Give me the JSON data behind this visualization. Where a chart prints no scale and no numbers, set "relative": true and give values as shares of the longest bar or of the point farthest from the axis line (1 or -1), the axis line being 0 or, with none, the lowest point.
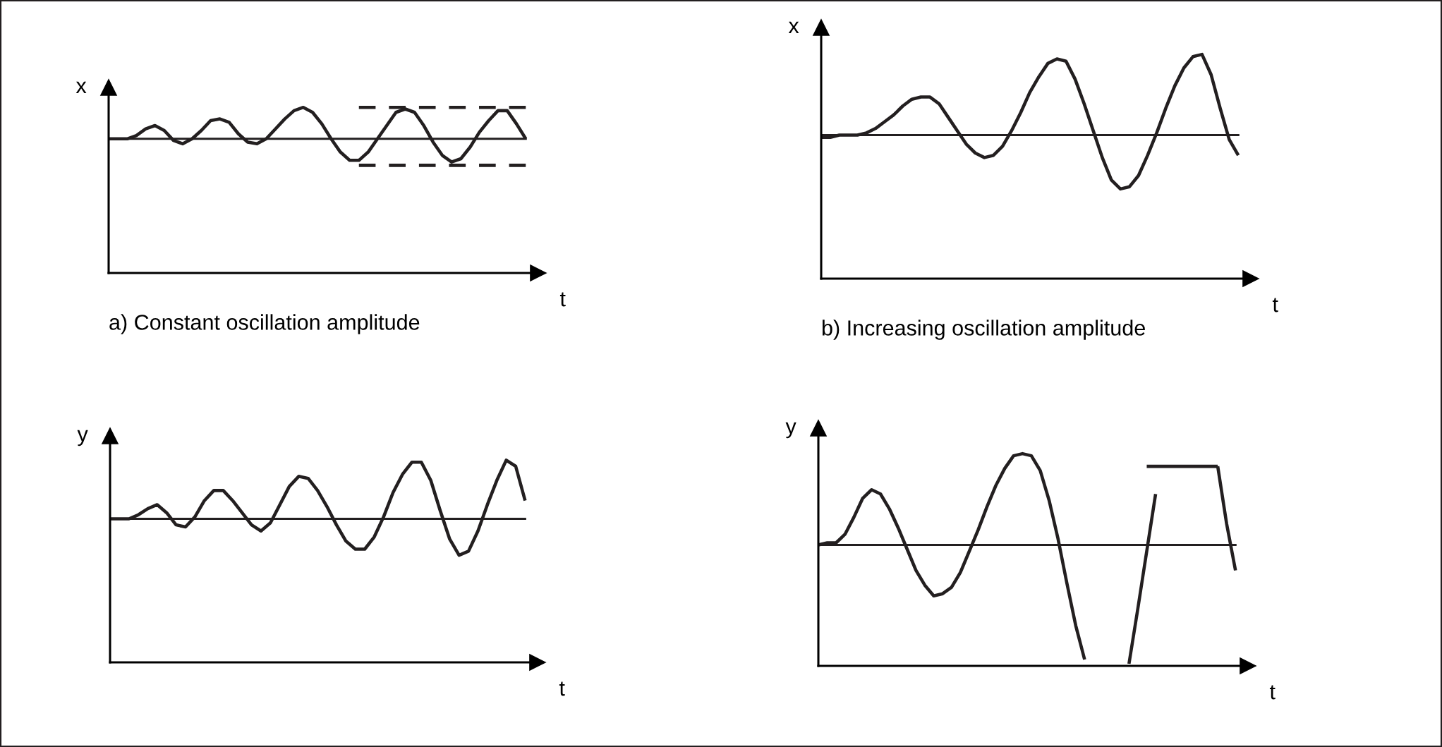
{
  "chart_data": [
    {
      "type": "line",
      "relative": true,
      "title": "a) Constant oscillation amplitude",
      "xlabel": "t",
      "ylabel": "x",
      "marker": "none",
      "categories": [
        null,
        null,
        null,
        null,
        null,
        null,
        null,
        null,
        null,
        null,
        null,
        null,
        null,
        null,
        null,
        null,
        null,
        null,
        null,
        null,
        null,
        null,
        null,
        null,
        null,
        null,
        null,
        null,
        null,
        null,
        null,
        null,
        null,
        null,
        null,
        null,
        null,
        null,
        null,
        null,
        null,
        null,
        null,
        null,
        null,
        null
      ],
      "series": [
        {
          "color": "#231f20",
          "line_style": "solid",
          "values": [
            0.81,
            0.81,
            0.81,
            0.83,
            0.87,
            0.89,
            0.86,
            0.8,
            0.78,
            0.81,
            0.86,
            0.92,
            0.93,
            0.91,
            0.84,
            0.79,
            0.78,
            0.81,
            0.87,
            0.93,
            0.98,
            1.0,
            0.97,
            0.9,
            0.81,
            0.73,
            0.68,
            0.68,
            0.73,
            0.81,
            0.89,
            0.97,
            0.99,
            0.97,
            0.89,
            0.79,
            0.71,
            0.67,
            0.69,
            0.76,
            0.85,
            0.92,
            0.98,
            0.98,
            0.9,
            0.81
          ]
        },
        {
          "color": "#231f20",
          "line_style": "dashed",
          "values": [
            null,
            null,
            null,
            null,
            null,
            null,
            null,
            null,
            null,
            null,
            null,
            null,
            null,
            null,
            null,
            null,
            null,
            null,
            null,
            null,
            null,
            null,
            null,
            null,
            null,
            null,
            null,
            1.0,
            1.0,
            1.0,
            1.0,
            1.0,
            1.0,
            1.0,
            1.0,
            1.0,
            1.0,
            1.0,
            1.0,
            1.0,
            1.0,
            1.0,
            1.0,
            1.0,
            1.0,
            1.0
          ]
        },
        {
          "color": "#231f20",
          "line_style": "dashed",
          "values": [
            null,
            null,
            null,
            null,
            null,
            null,
            null,
            null,
            null,
            null,
            null,
            null,
            null,
            null,
            null,
            null,
            null,
            null,
            null,
            null,
            null,
            null,
            null,
            null,
            null,
            null,
            null,
            0.65,
            0.65,
            0.65,
            0.65,
            0.65,
            0.65,
            0.65,
            0.65,
            0.65,
            0.65,
            0.65,
            0.65,
            0.65,
            0.65,
            0.65,
            0.65,
            0.65,
            0.65,
            0.65
          ]
        }
      ],
      "ref_lines": [
        {
          "axis": "y",
          "value": 0.81,
          "color": "#231f20"
        }
      ]
    },
    {
      "type": "line",
      "relative": true,
      "title": "b) Increasing oscillation amplitude",
      "xlabel": "t",
      "ylabel": "x",
      "marker": "none",
      "categories": [
        null,
        null,
        null,
        null,
        null,
        null,
        null,
        null,
        null,
        null,
        null,
        null,
        null,
        null,
        null,
        null,
        null,
        null,
        null,
        null,
        null,
        null,
        null,
        null,
        null,
        null,
        null,
        null,
        null,
        null,
        null,
        null,
        null,
        null,
        null,
        null,
        null,
        null,
        null,
        null,
        null,
        null,
        null,
        null,
        null,
        null,
        null
      ],
      "series": [
        {
          "color": "#231f20",
          "line_style": "solid",
          "values": [
            0.63,
            0.63,
            0.64,
            0.64,
            0.64,
            0.65,
            0.67,
            0.7,
            0.73,
            0.77,
            0.8,
            0.81,
            0.81,
            0.78,
            0.72,
            0.66,
            0.6,
            0.56,
            0.54,
            0.55,
            0.59,
            0.66,
            0.74,
            0.83,
            0.9,
            0.96,
            0.98,
            0.97,
            0.89,
            0.78,
            0.66,
            0.54,
            0.44,
            0.4,
            0.41,
            0.46,
            0.55,
            0.65,
            0.76,
            0.86,
            0.94,
            0.99,
            1.0,
            0.91,
            0.76,
            0.62,
            0.55
          ]
        }
      ],
      "ref_lines": [
        {
          "axis": "y",
          "value": 0.64,
          "color": "#231f20"
        }
      ]
    },
    {
      "type": "line",
      "relative": true,
      "xlabel": "t",
      "ylabel": "y",
      "marker": "none",
      "categories": [
        null,
        null,
        null,
        null,
        null,
        null,
        null,
        null,
        null,
        null,
        null,
        null,
        null,
        null,
        null,
        null,
        null,
        null,
        null,
        null,
        null,
        null,
        null,
        null,
        null,
        null,
        null,
        null,
        null,
        null,
        null,
        null,
        null,
        null,
        null,
        null,
        null,
        null,
        null,
        null,
        null,
        null,
        null,
        null,
        null
      ],
      "series": [
        {
          "color": "#231f20",
          "line_style": "solid",
          "values": [
            0.71,
            0.71,
            0.71,
            0.73,
            0.76,
            0.78,
            0.74,
            0.68,
            0.67,
            0.72,
            0.8,
            0.85,
            0.85,
            0.8,
            0.74,
            0.68,
            0.65,
            0.69,
            0.78,
            0.87,
            0.92,
            0.91,
            0.85,
            0.77,
            0.68,
            0.6,
            0.56,
            0.56,
            0.62,
            0.72,
            0.84,
            0.93,
            0.99,
            0.99,
            0.9,
            0.75,
            0.61,
            0.53,
            0.55,
            0.65,
            0.78,
            0.9,
            1.0,
            0.97,
            0.8
          ]
        }
      ],
      "ref_lines": [
        {
          "axis": "y",
          "value": 0.71,
          "color": "#231f20"
        }
      ]
    },
    {
      "type": "line",
      "relative": true,
      "xlabel": "t",
      "ylabel": "y",
      "marker": "none",
      "categories": [
        null,
        null,
        null,
        null,
        null,
        null,
        null,
        null,
        null,
        null,
        null,
        null,
        null,
        null,
        null,
        null,
        null,
        null,
        null,
        null,
        null,
        null,
        null,
        null,
        null,
        null,
        null,
        null,
        null,
        null,
        null,
        null,
        null,
        null,
        null,
        null,
        null,
        null,
        null,
        null,
        null,
        null,
        null,
        null,
        null,
        null,
        null,
        null
      ],
      "series": [
        {
          "color": "#231f20",
          "line_style": "solid",
          "values": [
            0.57,
            0.58,
            0.58,
            0.62,
            0.7,
            0.79,
            0.83,
            0.81,
            0.74,
            0.65,
            0.55,
            0.45,
            0.38,
            0.33,
            0.34,
            0.37,
            0.44,
            0.54,
            0.64,
            0.75,
            0.85,
            0.93,
            0.99,
            1.0,
            0.99,
            0.92,
            0.78,
            0.6,
            0.39,
            0.19,
            0.03,
            null,
            null,
            null,
            null,
            0.01,
            0.27,
            0.54,
            0.81,
            null,
            null,
            null,
            null,
            null,
            null,
            0.94,
            0.67,
            0.45
          ]
        },
        {
          "color": "#231f20",
          "line_style": "solid",
          "values": [
            null,
            null,
            null,
            null,
            null,
            null,
            null,
            null,
            null,
            null,
            null,
            null,
            null,
            null,
            null,
            null,
            null,
            null,
            null,
            null,
            null,
            null,
            null,
            null,
            null,
            null,
            null,
            null,
            null,
            null,
            null,
            null,
            null,
            null,
            null,
            null,
            null,
            0.94,
            0.94,
            0.94,
            0.94,
            0.94,
            0.94,
            0.94,
            0.94,
            0.94,
            null,
            null
          ]
        }
      ],
      "ref_lines": [
        {
          "axis": "y",
          "value": 0.57,
          "color": "#231f20"
        }
      ]
    }
  ]
}
